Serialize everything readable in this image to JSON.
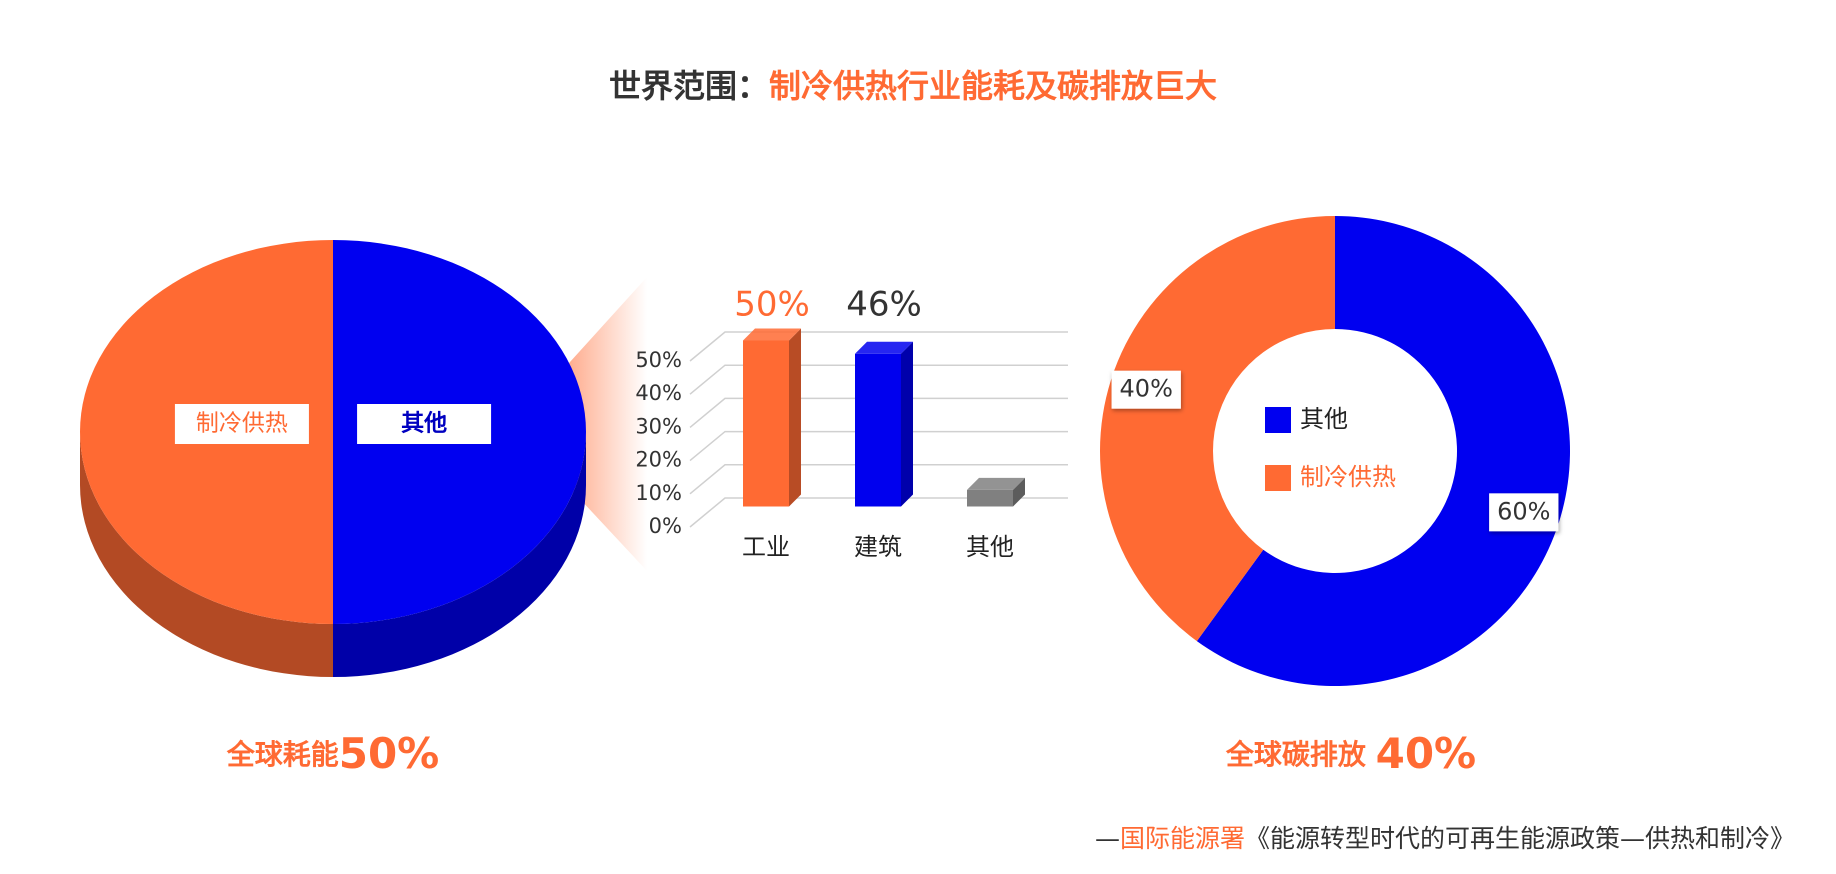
{
  "title_parts": [
    "世界范围：",
    "制冷供热行业能耗及碳排放巨大"
  ],
  "chart_data": [
    {
      "type": "pie3d",
      "categories": [
        "其他",
        "制冷供热"
      ],
      "values": [
        50,
        50
      ],
      "colors": [
        "#0000f0",
        "#ff6a33"
      ],
      "caption_parts": [
        "全球耗能",
        "50%"
      ]
    },
    {
      "type": "bar3d",
      "categories": [
        "工业",
        "建筑",
        "其他"
      ],
      "values": [
        50,
        46,
        5
      ],
      "value_labels": [
        "50%",
        "46%",
        null
      ],
      "colors": [
        "#ff6a33",
        "#0000ee",
        "#808080"
      ],
      "value_label_colors": [
        "#ff6a33",
        "#333333",
        "#333333"
      ],
      "ylim": [
        0,
        50
      ],
      "yticks": [
        {
          "value": 0,
          "label": "0%"
        },
        {
          "value": 10,
          "label": "10%"
        },
        {
          "value": 20,
          "label": "20%"
        },
        {
          "value": 30,
          "label": "30%"
        },
        {
          "value": 40,
          "label": "40%"
        },
        {
          "value": 50,
          "label": "50%"
        }
      ],
      "grid": true
    },
    {
      "type": "donut",
      "categories": [
        "其他",
        "制冷供热"
      ],
      "values": [
        60,
        40
      ],
      "value_labels": [
        "60%",
        "40%"
      ],
      "colors": [
        "#0000f0",
        "#ff6a33"
      ],
      "legend": "center",
      "caption_parts": [
        "全球碳排放 ",
        "40%"
      ]
    }
  ],
  "source_parts": [
    "—",
    "国际能源署",
    "《能源转型时代的可再生能源政策—供热和制冷》"
  ]
}
